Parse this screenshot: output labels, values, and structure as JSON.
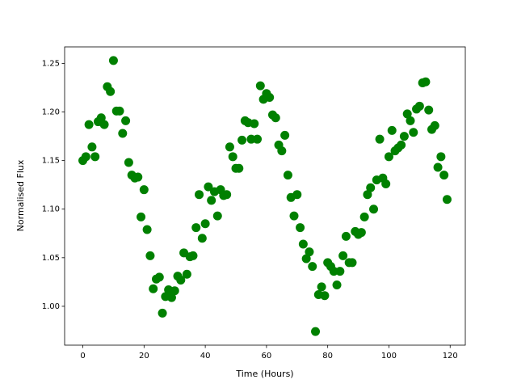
{
  "chart_data": {
    "type": "scatter",
    "xlabel": "Time (Hours)",
    "ylabel": "Normalised Flux",
    "color": "#008000",
    "x": [
      0,
      1,
      2,
      3,
      4,
      5,
      6,
      7,
      8,
      9,
      10,
      11,
      12,
      13,
      14,
      15,
      16,
      17,
      18,
      19,
      20,
      21,
      22,
      23,
      24,
      25,
      26,
      27,
      28,
      29,
      30,
      31,
      32,
      33,
      34,
      35,
      36,
      37,
      38,
      39,
      40,
      41,
      42,
      43,
      44,
      45,
      46,
      47,
      48,
      49,
      50,
      51,
      52,
      53,
      54,
      55,
      56,
      57,
      58,
      59,
      60,
      61,
      62,
      63,
      64,
      65,
      66,
      67,
      68,
      69,
      70,
      71,
      72,
      73,
      74,
      75,
      76,
      77,
      78,
      79,
      80,
      81,
      82,
      83,
      84,
      85,
      86,
      87,
      88,
      89,
      90,
      91,
      92,
      93,
      94,
      95,
      96,
      97,
      98,
      99,
      100,
      101,
      102,
      103,
      104,
      105,
      106,
      107,
      108,
      109,
      110,
      111,
      112,
      113,
      114,
      115,
      116,
      117,
      118,
      119
    ],
    "values": [
      1.15,
      1.154,
      1.187,
      1.164,
      1.154,
      1.19,
      1.194,
      1.187,
      1.226,
      1.221,
      1.253,
      1.201,
      1.201,
      1.178,
      1.191,
      1.148,
      1.135,
      1.132,
      1.133,
      1.092,
      1.12,
      1.079,
      1.052,
      1.018,
      1.028,
      1.03,
      0.993,
      1.01,
      1.017,
      1.009,
      1.016,
      1.031,
      1.027,
      1.055,
      1.033,
      1.051,
      1.052,
      1.081,
      1.115,
      1.07,
      1.085,
      1.123,
      1.109,
      1.118,
      1.093,
      1.12,
      1.114,
      1.115,
      1.164,
      1.154,
      1.142,
      1.142,
      1.171,
      1.191,
      1.189,
      1.172,
      1.188,
      1.172,
      1.227,
      1.213,
      1.219,
      1.215,
      1.197,
      1.194,
      1.166,
      1.16,
      1.176,
      1.135,
      1.112,
      1.093,
      1.115,
      1.081,
      1.064,
      1.049,
      1.056,
      1.041,
      0.974,
      1.012,
      1.02,
      1.011,
      1.045,
      1.041,
      1.036,
      1.022,
      1.036,
      1.052,
      1.072,
      1.045,
      1.045,
      1.077,
      1.074,
      1.076,
      1.092,
      1.115,
      1.122,
      1.1,
      1.13,
      1.172,
      1.132,
      1.126,
      1.154,
      1.181,
      1.16,
      1.163,
      1.166,
      1.175,
      1.198,
      1.191,
      1.179,
      1.203,
      1.206,
      1.23,
      1.231,
      1.202,
      1.182,
      1.186,
      1.143,
      1.154,
      1.135,
      1.11
    ],
    "xlim": [
      -5.95,
      124.95
    ],
    "xticks": [
      0,
      20,
      40,
      60,
      80,
      100,
      120
    ],
    "ylim": [
      0.96,
      1.267
    ],
    "yticks": [
      {
        "value": 1.0,
        "label": "1.00"
      },
      {
        "value": 1.05,
        "label": "1.05"
      },
      {
        "value": 1.1,
        "label": "1.10"
      },
      {
        "value": 1.15,
        "label": "1.15"
      },
      {
        "value": 1.2,
        "label": "1.20"
      },
      {
        "value": 1.25,
        "label": "1.25"
      }
    ]
  }
}
